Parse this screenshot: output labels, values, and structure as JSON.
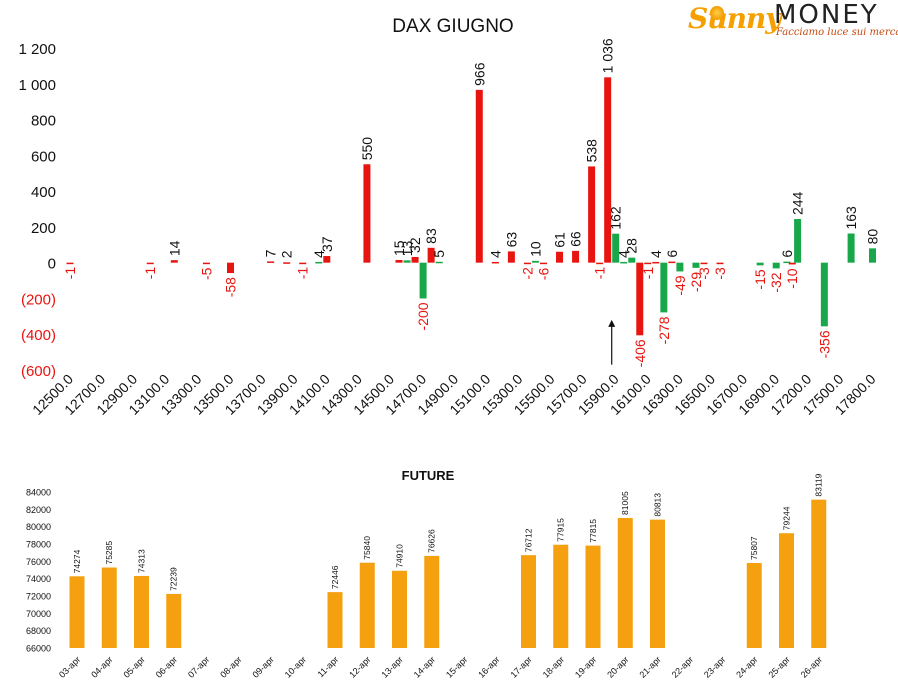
{
  "brand": {
    "name_script": "Sunny",
    "name_caps": "MONEY",
    "tagline": "Facciamo luce sui mercati"
  },
  "colors": {
    "positive": "#e8140f",
    "negative": "#18a84a",
    "future": "#f5a00e",
    "axis_neg_label": "#e8140f"
  },
  "chart_data": [
    {
      "type": "bar",
      "title": "DAX GIUGNO",
      "xlabel": "",
      "ylabel": "",
      "ylim": [
        -600,
        1200
      ],
      "yticks": [
        {
          "value": 1200,
          "label": "1 200"
        },
        {
          "value": 1000,
          "label": "1 000"
        },
        {
          "value": 800,
          "label": "800"
        },
        {
          "value": 600,
          "label": "600"
        },
        {
          "value": 400,
          "label": "400"
        },
        {
          "value": 200,
          "label": "200"
        },
        {
          "value": 0,
          "label": "0"
        },
        {
          "value": -200,
          "label": "(200)"
        },
        {
          "value": -400,
          "label": "(400)"
        },
        {
          "value": -600,
          "label": "(600)"
        }
      ],
      "xticks": [
        "12500.0",
        "12700.0",
        "12900.0",
        "13100.0",
        "13300.0",
        "13500.0",
        "13700.0",
        "13900.0",
        "14100.0",
        "14300.0",
        "14500.0",
        "14700.0",
        "14900.0",
        "15100.0",
        "15300.0",
        "15500.0",
        "15700.0",
        "15900.0",
        "16100.0",
        "16300.0",
        "16500.0",
        "16700.0",
        "16900.0",
        "17200.0",
        "17500.0",
        "17800.0"
      ],
      "bars": [
        {
          "x": 12500,
          "value": -1,
          "label": "-1",
          "color": "red"
        },
        {
          "x": 13000,
          "value": -1,
          "label": "-1",
          "color": "red"
        },
        {
          "x": 13150,
          "value": 14,
          "label": "14",
          "color": "red"
        },
        {
          "x": 13350,
          "value": -5,
          "label": "-5",
          "color": "red"
        },
        {
          "x": 13500,
          "value": -58,
          "label": "-58",
          "color": "red"
        },
        {
          "x": 13750,
          "value": 7,
          "label": "7",
          "color": "red"
        },
        {
          "x": 13850,
          "value": 2,
          "label": "2",
          "color": "red"
        },
        {
          "x": 13950,
          "value": -1,
          "label": "-1",
          "color": "red"
        },
        {
          "x": 14050,
          "value": 4,
          "label": "4",
          "color": "green"
        },
        {
          "x": 14100,
          "value": 37,
          "label": "37",
          "color": "red"
        },
        {
          "x": 14350,
          "value": 550,
          "label": "550",
          "color": "red"
        },
        {
          "x": 14550,
          "value": 15,
          "label": "15",
          "color": "red"
        },
        {
          "x": 14600,
          "value": 13,
          "label": "13",
          "color": "green"
        },
        {
          "x": 14650,
          "value": 32,
          "label": "32",
          "color": "red"
        },
        {
          "x": 14700,
          "value": -200,
          "label": "-200",
          "color": "green"
        },
        {
          "x": 14750,
          "value": 83,
          "label": "83",
          "color": "red"
        },
        {
          "x": 14800,
          "value": 5,
          "label": "5",
          "color": "green"
        },
        {
          "x": 15050,
          "value": 966,
          "label": "966",
          "color": "red"
        },
        {
          "x": 15150,
          "value": 4,
          "label": "4",
          "color": "red"
        },
        {
          "x": 15250,
          "value": 63,
          "label": "63",
          "color": "red"
        },
        {
          "x": 15350,
          "value": -2,
          "label": "-2",
          "color": "red"
        },
        {
          "x": 15400,
          "value": 10,
          "label": "10",
          "color": "green"
        },
        {
          "x": 15450,
          "value": -6,
          "label": "-6",
          "color": "red"
        },
        {
          "x": 15550,
          "value": 61,
          "label": "61",
          "color": "red"
        },
        {
          "x": 15650,
          "value": 66,
          "label": "66",
          "color": "red"
        },
        {
          "x": 15750,
          "value": 538,
          "label": "538",
          "color": "red"
        },
        {
          "x": 15800,
          "value": -1,
          "label": "-1",
          "color": "red"
        },
        {
          "x": 15850,
          "value": 1036,
          "label": "1 036",
          "color": "red"
        },
        {
          "x": 15900,
          "value": 162,
          "label": "162",
          "color": "green"
        },
        {
          "x": 15950,
          "value": 4,
          "label": "4",
          "color": "green"
        },
        {
          "x": 16000,
          "value": 28,
          "label": "28",
          "color": "green"
        },
        {
          "x": 16050,
          "value": -406,
          "label": "-406",
          "color": "red"
        },
        {
          "x": 16100,
          "value": -1,
          "label": "-1",
          "color": "red"
        },
        {
          "x": 16150,
          "value": 4,
          "label": "4",
          "color": "red"
        },
        {
          "x": 16200,
          "value": -278,
          "label": "-278",
          "color": "green"
        },
        {
          "x": 16250,
          "value": 6,
          "label": "6",
          "color": "red"
        },
        {
          "x": 16300,
          "value": -49,
          "label": "-49",
          "color": "green"
        },
        {
          "x": 16400,
          "value": -29,
          "label": "-29",
          "color": "green"
        },
        {
          "x": 16450,
          "value": -3,
          "label": "-3",
          "color": "red"
        },
        {
          "x": 16550,
          "value": -3,
          "label": "-3",
          "color": "red"
        },
        {
          "x": 16800,
          "value": -15,
          "label": "-15",
          "color": "green"
        },
        {
          "x": 16900,
          "value": -32,
          "label": "-32",
          "color": "green"
        },
        {
          "x": 17000,
          "value": 6,
          "label": "6",
          "color": "green"
        },
        {
          "x": 17050,
          "value": -10,
          "label": "-10",
          "color": "red"
        },
        {
          "x": 17100,
          "value": 244,
          "label": "244",
          "color": "green"
        },
        {
          "x": 17350,
          "value": -356,
          "label": "-356",
          "color": "green"
        },
        {
          "x": 17600,
          "value": 163,
          "label": "163",
          "color": "green"
        },
        {
          "x": 17850,
          "value": 80,
          "label": "80",
          "color": "green"
        }
      ],
      "marker": {
        "type": "arrow",
        "x": 15950,
        "from_value": -570,
        "to_value": -320
      }
    },
    {
      "type": "bar",
      "title": "FUTURE",
      "xlabel": "",
      "ylabel": "",
      "ylim": [
        66000,
        84000
      ],
      "yticks": [
        84000,
        82000,
        80000,
        78000,
        76000,
        74000,
        72000,
        70000,
        68000,
        66000
      ],
      "categories": [
        "03-apr",
        "04-apr",
        "05-apr",
        "06-apr",
        "07-apr",
        "08-apr",
        "09-apr",
        "10-apr",
        "11-apr",
        "12-apr",
        "13-apr",
        "14-apr",
        "15-apr",
        "16-apr",
        "17-apr",
        "18-apr",
        "19-apr",
        "20-apr",
        "21-apr",
        "22-apr",
        "23-apr",
        "24-apr",
        "25-apr",
        "26-apr"
      ],
      "values": [
        74274,
        75285,
        74313,
        72239,
        null,
        null,
        null,
        null,
        72446,
        75840,
        74910,
        76626,
        null,
        null,
        76712,
        77915,
        77815,
        81005,
        80813,
        null,
        null,
        75807,
        79244,
        83119
      ]
    }
  ]
}
